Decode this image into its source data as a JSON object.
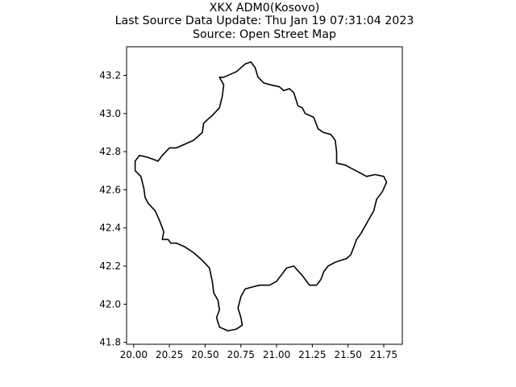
{
  "figure": {
    "title_lines": [
      "XKX ADM0(Kosovo)",
      "Last Source Data Update: Thu Jan 19 07:31:04 2023",
      "Source: Open Street Map"
    ]
  },
  "chart_data": {
    "type": "map-boundary",
    "xlim": [
      19.95,
      21.88
    ],
    "ylim": [
      41.79,
      43.35
    ],
    "x_ticks": [
      "20.00",
      "20.25",
      "20.50",
      "20.75",
      "21.00",
      "21.25",
      "21.50",
      "21.75"
    ],
    "y_ticks": [
      "41.8",
      "42.0",
      "42.2",
      "42.4",
      "42.6",
      "42.8",
      "43.0",
      "43.2"
    ],
    "grid": false,
    "boundary_color": "#000000",
    "boundary": [
      [
        20.63,
        43.19
      ],
      [
        20.72,
        43.22
      ],
      [
        20.78,
        43.26
      ],
      [
        20.82,
        43.27
      ],
      [
        20.85,
        43.24
      ],
      [
        20.87,
        43.19
      ],
      [
        20.91,
        43.16
      ],
      [
        20.96,
        43.15
      ],
      [
        21.02,
        43.14
      ],
      [
        21.05,
        43.12
      ],
      [
        21.09,
        43.13
      ],
      [
        21.12,
        43.11
      ],
      [
        21.15,
        43.04
      ],
      [
        21.18,
        43.03
      ],
      [
        21.2,
        43.0
      ],
      [
        21.26,
        42.98
      ],
      [
        21.29,
        42.92
      ],
      [
        21.33,
        42.9
      ],
      [
        21.38,
        42.89
      ],
      [
        21.41,
        42.86
      ],
      [
        21.42,
        42.8
      ],
      [
        21.42,
        42.74
      ],
      [
        21.48,
        42.73
      ],
      [
        21.53,
        42.71
      ],
      [
        21.58,
        42.69
      ],
      [
        21.63,
        42.67
      ],
      [
        21.69,
        42.68
      ],
      [
        21.75,
        42.67
      ],
      [
        21.77,
        42.64
      ],
      [
        21.74,
        42.59
      ],
      [
        21.7,
        42.55
      ],
      [
        21.68,
        42.49
      ],
      [
        21.65,
        42.45
      ],
      [
        21.62,
        42.41
      ],
      [
        21.59,
        42.37
      ],
      [
        21.56,
        42.34
      ],
      [
        21.54,
        42.3
      ],
      [
        21.52,
        42.26
      ],
      [
        21.49,
        42.24
      ],
      [
        21.45,
        42.23
      ],
      [
        21.41,
        42.22
      ],
      [
        21.36,
        42.2
      ],
      [
        21.33,
        42.17
      ],
      [
        21.31,
        42.13
      ],
      [
        21.28,
        42.1
      ],
      [
        21.23,
        42.1
      ],
      [
        21.18,
        42.15
      ],
      [
        21.12,
        42.2
      ],
      [
        21.07,
        42.19
      ],
      [
        21.03,
        42.15
      ],
      [
        21.0,
        42.12
      ],
      [
        20.95,
        42.1
      ],
      [
        20.88,
        42.1
      ],
      [
        20.83,
        42.09
      ],
      [
        20.78,
        42.08
      ],
      [
        20.75,
        42.04
      ],
      [
        20.73,
        41.98
      ],
      [
        20.75,
        41.93
      ],
      [
        20.76,
        41.89
      ],
      [
        20.72,
        41.87
      ],
      [
        20.66,
        41.86
      ],
      [
        20.6,
        41.88
      ],
      [
        20.58,
        41.93
      ],
      [
        20.6,
        41.97
      ],
      [
        20.59,
        42.02
      ],
      [
        20.56,
        42.06
      ],
      [
        20.55,
        42.12
      ],
      [
        20.53,
        42.19
      ],
      [
        20.48,
        42.23
      ],
      [
        20.42,
        42.27
      ],
      [
        20.36,
        42.3
      ],
      [
        20.3,
        42.32
      ],
      [
        20.26,
        42.32
      ],
      [
        20.24,
        42.34
      ],
      [
        20.2,
        42.34
      ],
      [
        20.21,
        42.38
      ],
      [
        20.18,
        42.44
      ],
      [
        20.15,
        42.49
      ],
      [
        20.1,
        42.53
      ],
      [
        20.08,
        42.56
      ],
      [
        20.07,
        42.61
      ],
      [
        20.05,
        42.67
      ],
      [
        20.01,
        42.7
      ],
      [
        20.01,
        42.75
      ],
      [
        20.04,
        42.78
      ],
      [
        20.1,
        42.77
      ],
      [
        20.17,
        42.75
      ],
      [
        20.2,
        42.78
      ],
      [
        20.25,
        42.82
      ],
      [
        20.3,
        42.82
      ],
      [
        20.36,
        42.84
      ],
      [
        20.42,
        42.86
      ],
      [
        20.48,
        42.9
      ],
      [
        20.49,
        42.95
      ],
      [
        20.55,
        42.99
      ],
      [
        20.6,
        43.03
      ],
      [
        20.62,
        43.09
      ],
      [
        20.63,
        43.15
      ],
      [
        20.6,
        43.19
      ],
      [
        20.63,
        43.19
      ]
    ]
  }
}
